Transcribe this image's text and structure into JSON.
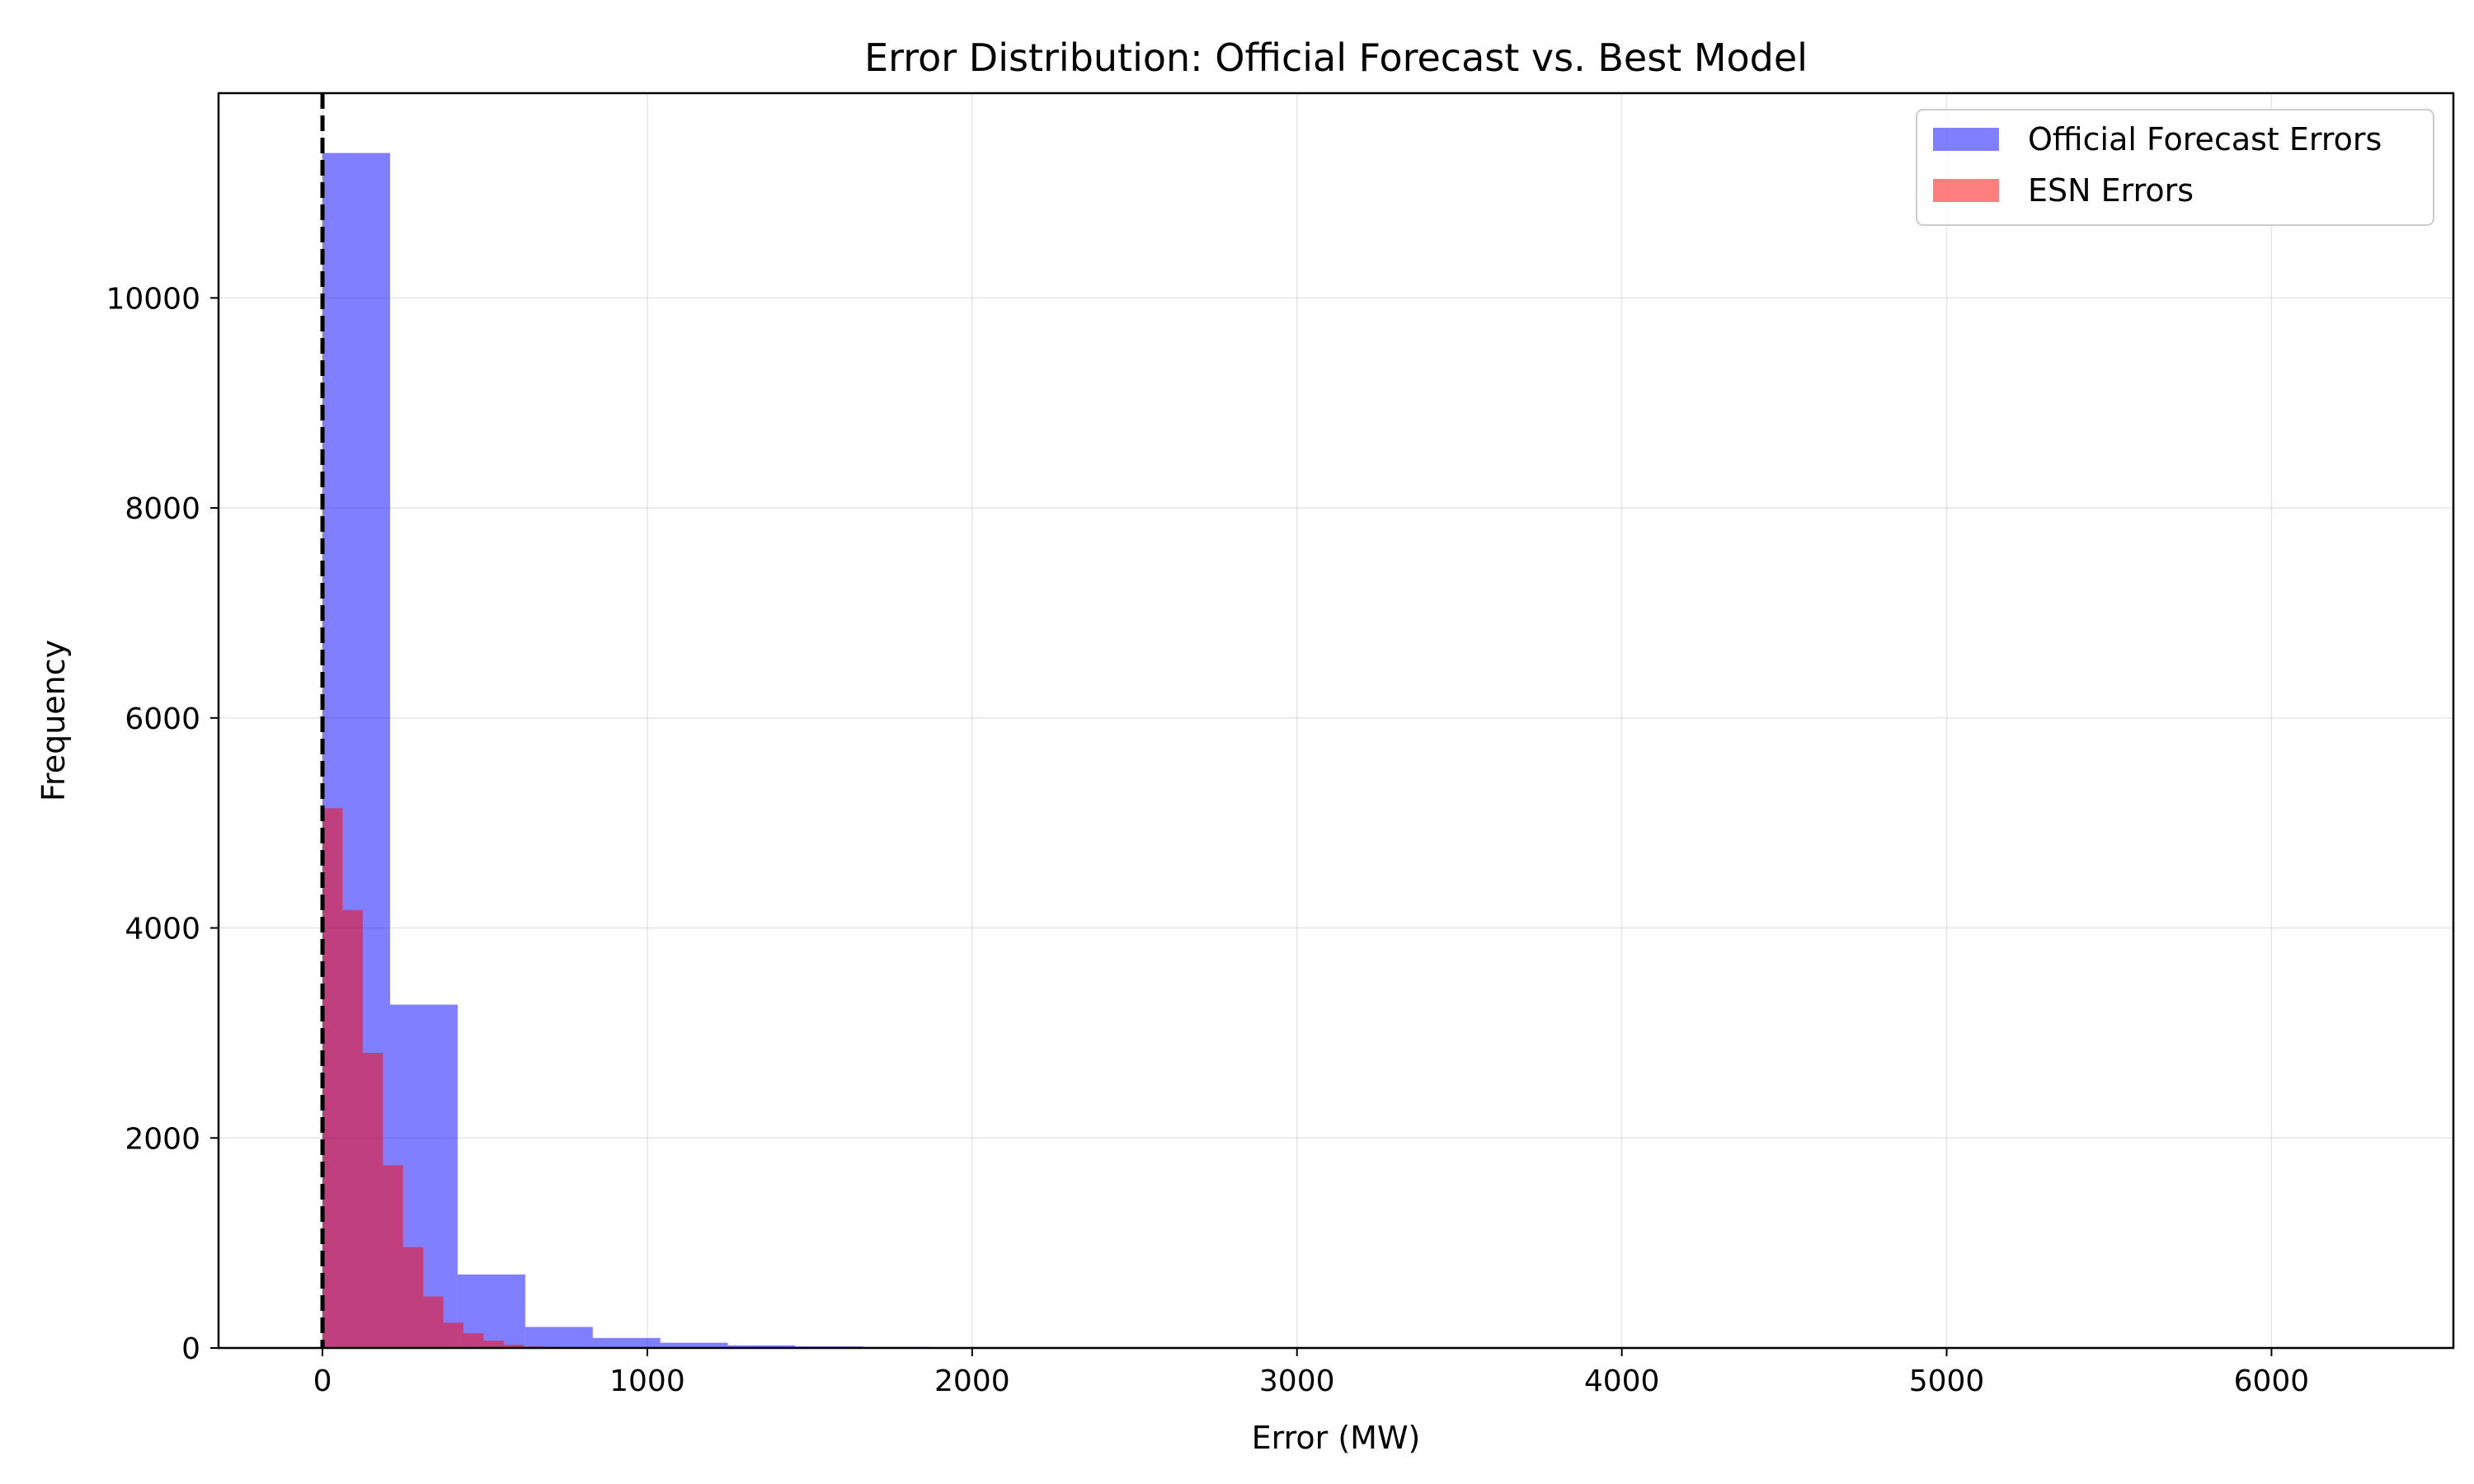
{
  "chart_data": {
    "type": "bar",
    "title": "Error Distribution: Official Forecast vs. Best Model",
    "xlabel": "Error (MW)",
    "ylabel": "Frequency",
    "xlim": [
      -320,
      6560
    ],
    "ylim": [
      0,
      11950
    ],
    "xticks": [
      0,
      1000,
      2000,
      3000,
      4000,
      5000,
      6000
    ],
    "yticks": [
      0,
      2000,
      4000,
      6000,
      8000,
      10000
    ],
    "grid": true,
    "legend_position": "top-right",
    "reference_line": {
      "x": 0,
      "style": "dashed",
      "color": "#000000"
    },
    "series": [
      {
        "name": "Official Forecast Errors",
        "color": "#0000ff",
        "opacity": 0.5,
        "bins": [
          {
            "x0": 0,
            "x1": 208,
            "count": 11380
          },
          {
            "x0": 208,
            "x1": 416,
            "count": 3270
          },
          {
            "x0": 416,
            "x1": 624,
            "count": 700
          },
          {
            "x0": 624,
            "x1": 832,
            "count": 200
          },
          {
            "x0": 832,
            "x1": 1040,
            "count": 95
          },
          {
            "x0": 1040,
            "x1": 1248,
            "count": 50
          },
          {
            "x0": 1248,
            "x1": 1456,
            "count": 25
          },
          {
            "x0": 1456,
            "x1": 1664,
            "count": 15
          },
          {
            "x0": 1664,
            "x1": 1872,
            "count": 10
          }
        ]
      },
      {
        "name": "ESN Errors",
        "color": "#ff0000",
        "opacity": 0.5,
        "bins": [
          {
            "x0": 0,
            "x1": 62,
            "count": 5140
          },
          {
            "x0": 62,
            "x1": 124,
            "count": 4170
          },
          {
            "x0": 124,
            "x1": 186,
            "count": 2810
          },
          {
            "x0": 186,
            "x1": 248,
            "count": 1740
          },
          {
            "x0": 248,
            "x1": 310,
            "count": 960
          },
          {
            "x0": 310,
            "x1": 372,
            "count": 490
          },
          {
            "x0": 372,
            "x1": 434,
            "count": 240
          },
          {
            "x0": 434,
            "x1": 496,
            "count": 140
          },
          {
            "x0": 496,
            "x1": 558,
            "count": 70
          },
          {
            "x0": 558,
            "x1": 620,
            "count": 30
          },
          {
            "x0": 620,
            "x1": 682,
            "count": 15
          },
          {
            "x0": 682,
            "x1": 744,
            "count": 8
          }
        ]
      }
    ]
  }
}
